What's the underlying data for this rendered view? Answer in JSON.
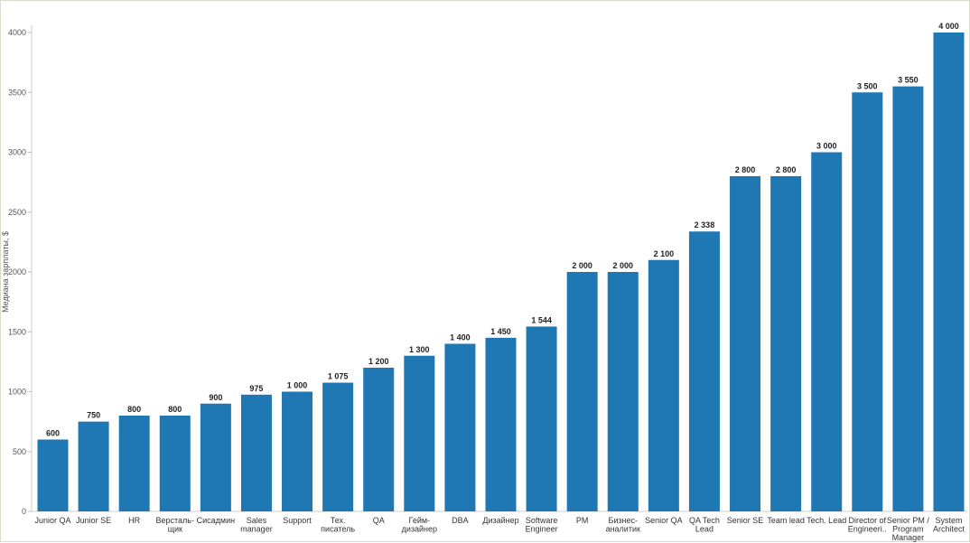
{
  "chart_data": {
    "type": "bar",
    "title": "",
    "xlabel": "",
    "ylabel": "Медиана зарплаты, $",
    "ylim": [
      0,
      4000
    ],
    "y_ticks": [
      0,
      500,
      1000,
      1500,
      2000,
      2500,
      3000,
      3500,
      4000
    ],
    "y_tick_labels": [
      "0",
      "500",
      "1000",
      "1500",
      "2000",
      "2500",
      "3000",
      "3500",
      "4000"
    ],
    "grid": false,
    "legend": "none",
    "bar_color": "#1f77b4",
    "categories": [
      "Junior QA",
      "Junior SE",
      "HR",
      "Версталь-\nщик",
      "Сисадмин",
      "Sales\nmanager",
      "Support",
      "Тех.\nписатель",
      "QA",
      "Гейм-\nдизайнер",
      "DBA",
      "Дизайнер",
      "Software\nEngineer",
      "PM",
      "Бизнес-\nаналитик",
      "Senior QA",
      "QA Tech\nLead",
      "Senior SE",
      "Team lead",
      "Tech. Lead",
      "Director of\nEngineeri..",
      "Senior PM /\nProgram\nManager",
      "System\nArchitect"
    ],
    "values": [
      600,
      750,
      800,
      800,
      900,
      975,
      1000,
      1075,
      1200,
      1300,
      1400,
      1450,
      1544,
      2000,
      2000,
      2100,
      2338,
      2800,
      2800,
      3000,
      3500,
      3550,
      4000
    ],
    "value_labels": [
      "600",
      "750",
      "800",
      "800",
      "900",
      "975",
      "1 000",
      "1 075",
      "1 200",
      "1 300",
      "1 400",
      "1 450",
      "1 544",
      "2 000",
      "2 000",
      "2 100",
      "2 338",
      "2 800",
      "2 800",
      "3 000",
      "3 500",
      "3 550",
      "4 000"
    ]
  }
}
